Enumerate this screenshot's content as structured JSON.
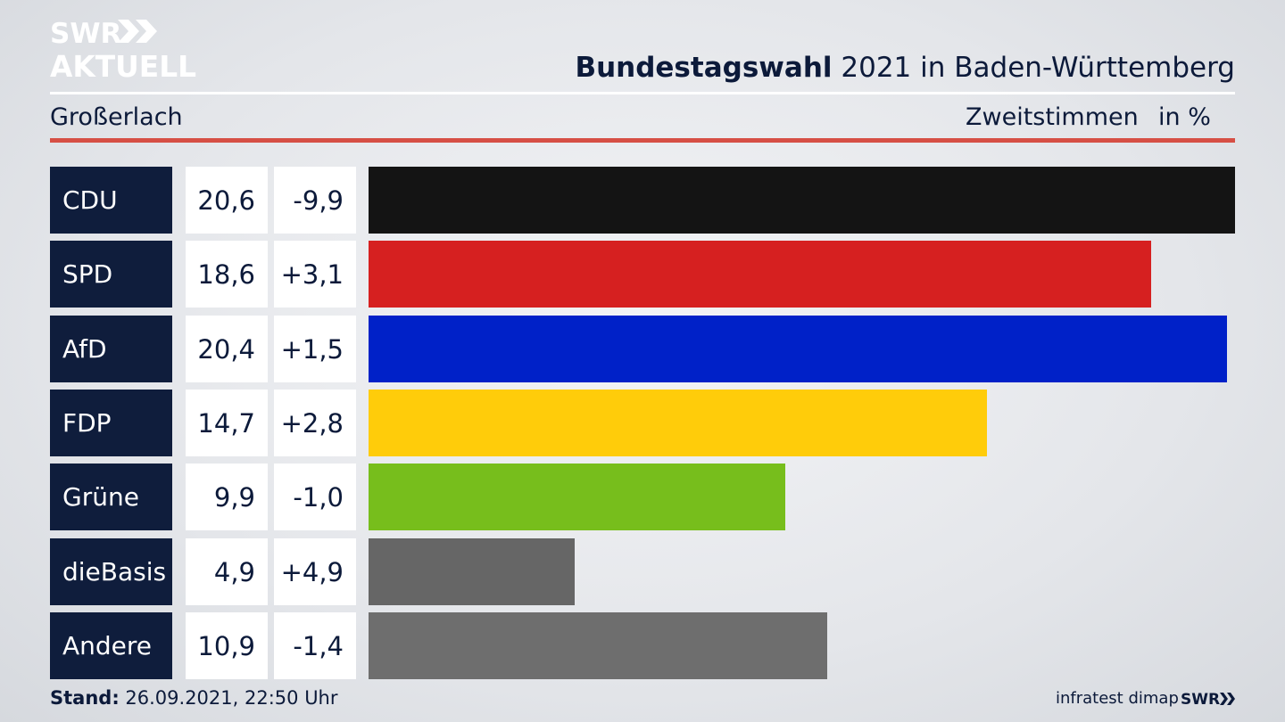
{
  "header": {
    "logo_line1": "SWR",
    "logo_line2": "AKTUELL",
    "title_bold": "Bundestagswahl",
    "title_rest": "2021 in Baden-Württemberg",
    "region": "Großerlach",
    "measure": "Zweitstimmen",
    "unit": "in %"
  },
  "chart_data": {
    "type": "bar",
    "orientation": "horizontal",
    "categories": [
      "CDU",
      "SPD",
      "AfD",
      "FDP",
      "Grüne",
      "dieBasis",
      "Andere"
    ],
    "values": [
      20.6,
      18.6,
      20.4,
      14.7,
      9.9,
      4.9,
      10.9
    ],
    "value_labels": [
      "20,6",
      "18,6",
      "20,4",
      "14,7",
      "9,9",
      "4,9",
      "10,9"
    ],
    "changes": [
      -9.9,
      3.1,
      1.5,
      2.8,
      -1.0,
      4.9,
      -1.4
    ],
    "change_labels": [
      "-9,9",
      "+3,1",
      "+1,5",
      "+2,8",
      "-1,0",
      "+4,9",
      "-1,4"
    ],
    "colors": [
      "#141414",
      "#d62020",
      "#0021c8",
      "#ffcc0a",
      "#77be1c",
      "#666666",
      "#6e6e6e"
    ],
    "xlim": [
      0,
      20.6
    ],
    "grid": false,
    "legend": "none"
  },
  "footer": {
    "stand_label": "Stand:",
    "stand_value": "26.09.2021, 22:50 Uhr",
    "source": "infratest dimap",
    "logo_small": "SWR"
  }
}
